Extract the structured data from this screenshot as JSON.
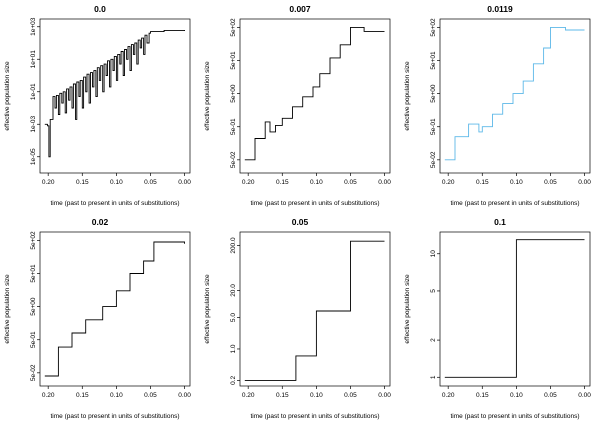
{
  "background": "#ffffff",
  "chart_data": [
    {
      "type": "line",
      "step": true,
      "title": "0.0",
      "xlabel": "time (past to present in units of substitutions)",
      "ylabel": "effective population size",
      "color": "#000000",
      "xlim": [
        0.212,
        -0.008
      ],
      "ylim": [
        1e-06,
        3000
      ],
      "ylog": true,
      "xticks": [
        0.2,
        0.15,
        0.1,
        0.05,
        0.0
      ],
      "xtick_labels": [
        "0.20",
        "0.15",
        "0.10",
        "0.05",
        "0.00"
      ],
      "yticks": [
        1e-05,
        0.001,
        0.1,
        10,
        1000
      ],
      "ytick_labels": [
        "1e-05",
        "1e-03",
        "1e-01",
        "1e+01",
        "1e+03"
      ],
      "x": [
        0.205,
        0.201,
        0.199,
        0.197,
        0.193,
        0.19,
        0.188,
        0.185,
        0.183,
        0.18,
        0.178,
        0.175,
        0.173,
        0.17,
        0.168,
        0.165,
        0.163,
        0.16,
        0.158,
        0.155,
        0.153,
        0.15,
        0.148,
        0.145,
        0.143,
        0.14,
        0.138,
        0.135,
        0.133,
        0.13,
        0.128,
        0.125,
        0.123,
        0.12,
        0.118,
        0.115,
        0.113,
        0.11,
        0.108,
        0.105,
        0.103,
        0.1,
        0.098,
        0.095,
        0.093,
        0.09,
        0.088,
        0.085,
        0.083,
        0.08,
        0.078,
        0.075,
        0.073,
        0.07,
        0.068,
        0.065,
        0.063,
        0.06,
        0.058,
        0.055,
        0.052,
        0.05,
        0.03,
        0.0
      ],
      "y": [
        0.001,
        0.0008,
        1e-05,
        0.002,
        0.05,
        0.01,
        0.06,
        0.004,
        0.08,
        0.02,
        0.1,
        0.005,
        0.15,
        0.03,
        0.2,
        0.01,
        0.3,
        0.002,
        0.4,
        0.05,
        0.5,
        0.01,
        0.8,
        0.1,
        1.2,
        0.02,
        1.5,
        0.2,
        2,
        0.05,
        3,
        0.5,
        4,
        0.1,
        5,
        1,
        8,
        0.2,
        10,
        2,
        15,
        0.5,
        20,
        5,
        30,
        1,
        40,
        10,
        60,
        2,
        80,
        20,
        100,
        5,
        150,
        50,
        200,
        20,
        300,
        100,
        400,
        500,
        600,
        550
      ]
    },
    {
      "type": "line",
      "step": true,
      "title": "0.007",
      "xlabel": "time (past to present in units of substitutions)",
      "ylabel": "effective population size",
      "color": "#000000",
      "xlim": [
        0.212,
        -0.008
      ],
      "ylim": [
        0.02,
        900
      ],
      "ylog": true,
      "xticks": [
        0.2,
        0.15,
        0.1,
        0.05,
        0.0
      ],
      "xtick_labels": [
        "0.20",
        "0.15",
        "0.10",
        "0.05",
        "0.00"
      ],
      "yticks": [
        0.05,
        0.5,
        5,
        50,
        500
      ],
      "ytick_labels": [
        "5e-02",
        "5e-01",
        "5e+00",
        "5e+01",
        "5e+02"
      ],
      "x": [
        0.205,
        0.19,
        0.175,
        0.168,
        0.16,
        0.15,
        0.135,
        0.12,
        0.105,
        0.095,
        0.08,
        0.065,
        0.05,
        0.03,
        0.0
      ],
      "y": [
        0.05,
        0.22,
        0.7,
        0.35,
        0.55,
        0.9,
        2,
        4,
        8,
        20,
        60,
        150,
        500,
        380,
        380
      ]
    },
    {
      "type": "line",
      "step": true,
      "title": "0.0119",
      "xlabel": "time (past to present in units of substitutions)",
      "ylabel": "effective population size",
      "color": "#5cb8e8",
      "xlim": [
        0.212,
        -0.008
      ],
      "ylim": [
        0.02,
        900
      ],
      "ylog": true,
      "xticks": [
        0.2,
        0.15,
        0.1,
        0.05,
        0.0
      ],
      "xtick_labels": [
        "0.20",
        "0.15",
        "0.10",
        "0.05",
        "0.00"
      ],
      "yticks": [
        0.05,
        0.5,
        5,
        50,
        500
      ],
      "ytick_labels": [
        "5e-02",
        "5e-01",
        "5e+00",
        "5e+01",
        "5e+02"
      ],
      "x": [
        0.205,
        0.19,
        0.17,
        0.155,
        0.15,
        0.135,
        0.12,
        0.105,
        0.09,
        0.075,
        0.06,
        0.05,
        0.028,
        0.0
      ],
      "y": [
        0.05,
        0.25,
        0.6,
        0.35,
        0.5,
        1.2,
        2.5,
        5,
        12,
        40,
        120,
        500,
        420,
        420
      ]
    },
    {
      "type": "line",
      "step": true,
      "title": "0.02",
      "xlabel": "time (past to present in units of substitutions)",
      "ylabel": "effective population size",
      "color": "#000000",
      "xlim": [
        0.212,
        -0.008
      ],
      "ylim": [
        0.02,
        900
      ],
      "ylog": true,
      "xticks": [
        0.2,
        0.15,
        0.1,
        0.05,
        0.0
      ],
      "xtick_labels": [
        "0.20",
        "0.15",
        "0.10",
        "0.05",
        "0.00"
      ],
      "yticks": [
        0.05,
        0.5,
        5,
        50,
        500
      ],
      "ytick_labels": [
        "5e-02",
        "5e-01",
        "5e+00",
        "5e+01",
        "5e+02"
      ],
      "x": [
        0.205,
        0.185,
        0.165,
        0.145,
        0.12,
        0.1,
        0.08,
        0.06,
        0.045,
        0.0
      ],
      "y": [
        0.04,
        0.3,
        0.8,
        2,
        5,
        15,
        50,
        120,
        450,
        400
      ]
    },
    {
      "type": "line",
      "step": true,
      "title": "0.05",
      "xlabel": "time (past to present in units of substitutions)",
      "ylabel": "effective population size",
      "color": "#000000",
      "xlim": [
        0.212,
        -0.008
      ],
      "ylim": [
        0.15,
        400
      ],
      "ylog": true,
      "xticks": [
        0.2,
        0.15,
        0.1,
        0.05,
        0.0
      ],
      "xtick_labels": [
        "0.20",
        "0.15",
        "0.10",
        "0.05",
        "0.00"
      ],
      "yticks": [
        0.2,
        1.0,
        5.0,
        20.0,
        200.0
      ],
      "ytick_labels": [
        "0.2",
        "1.0",
        "5.0",
        "20.0",
        "200.0"
      ],
      "x": [
        0.205,
        0.13,
        0.1,
        0.05,
        0.0
      ],
      "y": [
        0.2,
        0.7,
        7,
        250,
        250
      ]
    },
    {
      "type": "line",
      "step": true,
      "title": "0.1",
      "xlabel": "time (past to present in units of substitutions)",
      "ylabel": "effective population size",
      "color": "#000000",
      "xlim": [
        0.212,
        -0.008
      ],
      "ylim": [
        0.85,
        15
      ],
      "ylog": true,
      "xticks": [
        0.2,
        0.15,
        0.1,
        0.05,
        0.0
      ],
      "xtick_labels": [
        "0.20",
        "0.15",
        "0.10",
        "0.05",
        "0.00"
      ],
      "yticks": [
        1,
        2,
        5,
        10
      ],
      "ytick_labels": [
        "1",
        "2",
        "5",
        "10"
      ],
      "x": [
        0.205,
        0.1,
        0.0
      ],
      "y": [
        1,
        13,
        13
      ]
    }
  ]
}
